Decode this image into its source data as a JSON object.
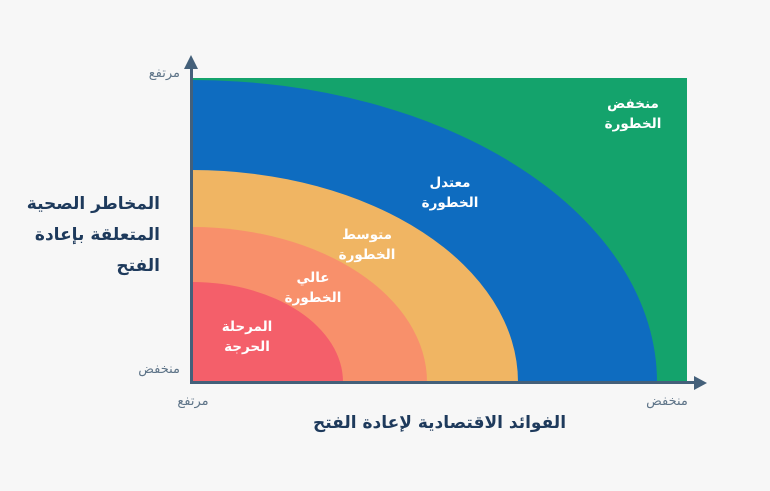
{
  "colors": {
    "background": "#f7f7f7",
    "axis": "#44607a",
    "title_text": "#1e3a5c",
    "tick_text": "#5e7488",
    "zone_label_text": "#ffffff"
  },
  "chart_data": {
    "type": "area",
    "title": "",
    "xlabel": "الفوائد الاقتصادية لإعادة الفتح",
    "ylabel": "المخاطر الصحية\nالمتعلقة بإعادة\nالفتح",
    "x_axis": {
      "direction": "high-at-left",
      "left_tick": "مرتفع",
      "right_tick": "منخفض"
    },
    "y_axis": {
      "direction": "high-at-top",
      "top_tick": "مرتفع",
      "bottom_tick": "منخفض"
    },
    "zones": [
      {
        "id": "low-risk",
        "label": "منخفض\nالخطورة",
        "color": "#14a36c",
        "x_extent": 1.0,
        "y_extent": 1.0
      },
      {
        "id": "moderate-risk",
        "label": "معتدل\nالخطورة",
        "color": "#0e6cc0",
        "x_extent": 0.94,
        "y_extent": 0.99
      },
      {
        "id": "medium-risk",
        "label": "متوسط\nالخطورة",
        "color": "#f0b563",
        "x_extent": 0.66,
        "y_extent": 0.7
      },
      {
        "id": "high-risk",
        "label": "عالي\nالخطورة",
        "color": "#f8906b",
        "x_extent": 0.475,
        "y_extent": 0.51
      },
      {
        "id": "critical-stage",
        "label": "المرحلة\nالحرجة",
        "color": "#f45f6a",
        "x_extent": 0.305,
        "y_extent": 0.33
      }
    ]
  }
}
